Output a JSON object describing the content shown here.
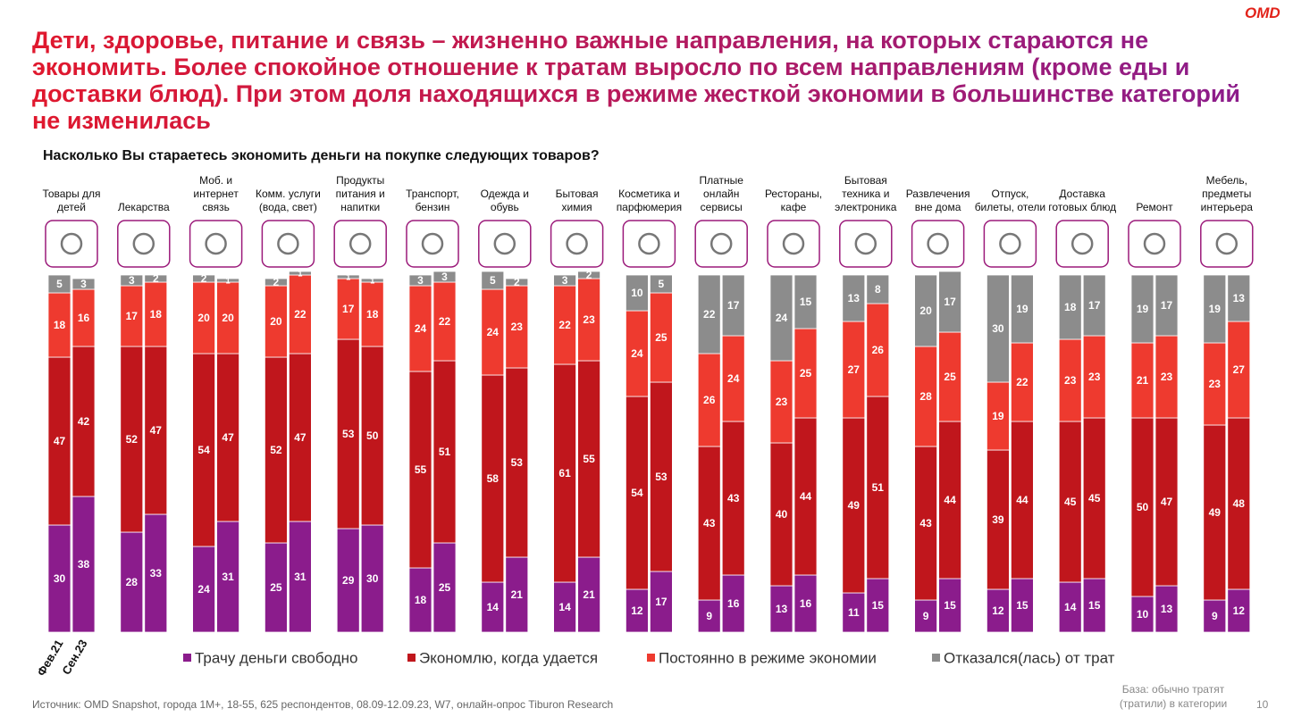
{
  "header": {
    "title": "Дети, здоровье, питание и связь – жизненно важные направления, на которых стараются не экономить. Более спокойное отношение к тратам выросло по всем направлениям (кроме еды и доставки блюд). При этом доля находящихся в режиме жесткой экономии в большинстве категорий не изменилась",
    "logo": "OMD"
  },
  "chart_data": {
    "type": "grouped-stacked-bar",
    "title": "Насколько Вы стараетесь экономить деньги на покупке следующих товаров?",
    "categories": [
      "Товары для детей",
      "Лекарства",
      "Моб. и интернет связь",
      "Комм. услуги (вода, свет)",
      "Продукты питания и напитки",
      "Транспорт, бензин",
      "Одежда и обувь",
      "Бытовая химия",
      "Косметика и парфюмерия",
      "Платные онлайн сервисы",
      "Рестораны, кафе",
      "Бытовая техника и электроника",
      "Развлечения вне дома",
      "Отпуск, билеты, отели",
      "Доставка готовых блюд",
      "Ремонт",
      "Мебель, предметы интерьера"
    ],
    "periods": [
      "Фев.21",
      "Сен.23"
    ],
    "ylim": [
      0,
      100
    ],
    "series": [
      {
        "name": "Трачу деньги свободно",
        "color": "#8b1c8c",
        "values": [
          [
            30,
            38
          ],
          [
            28,
            33
          ],
          [
            24,
            31
          ],
          [
            25,
            31
          ],
          [
            29,
            30
          ],
          [
            18,
            25
          ],
          [
            14,
            21
          ],
          [
            14,
            21
          ],
          [
            12,
            17
          ],
          [
            9,
            16
          ],
          [
            13,
            16
          ],
          [
            11,
            15
          ],
          [
            9,
            15
          ],
          [
            12,
            15
          ],
          [
            14,
            15
          ],
          [
            10,
            13
          ],
          [
            9,
            12
          ]
        ]
      },
      {
        "name": "Экономлю, когда удается",
        "color": "#c0161c",
        "values": [
          [
            47,
            42
          ],
          [
            52,
            47
          ],
          [
            54,
            47
          ],
          [
            52,
            47
          ],
          [
            53,
            50
          ],
          [
            55,
            51
          ],
          [
            58,
            53
          ],
          [
            61,
            55
          ],
          [
            54,
            53
          ],
          [
            43,
            43
          ],
          [
            40,
            44
          ],
          [
            49,
            51
          ],
          [
            43,
            44
          ],
          [
            39,
            44
          ],
          [
            45,
            45
          ],
          [
            50,
            47
          ],
          [
            49,
            48
          ]
        ]
      },
      {
        "name": "Постоянно в режиме экономии",
        "color": "#ee3a2f",
        "values": [
          [
            18,
            16
          ],
          [
            17,
            18
          ],
          [
            20,
            20
          ],
          [
            20,
            22
          ],
          [
            17,
            18
          ],
          [
            24,
            22
          ],
          [
            24,
            23
          ],
          [
            22,
            23
          ],
          [
            24,
            25
          ],
          [
            26,
            24
          ],
          [
            23,
            25
          ],
          [
            27,
            26
          ],
          [
            28,
            25
          ],
          [
            19,
            22
          ],
          [
            23,
            23
          ],
          [
            21,
            23
          ],
          [
            23,
            27
          ]
        ]
      },
      {
        "name": "Отказался(лась) от трат",
        "color": "#8c8c8c",
        "values": [
          [
            5,
            3
          ],
          [
            3,
            2
          ],
          [
            2,
            1
          ],
          [
            2,
            1
          ],
          [
            1,
            1
          ],
          [
            3,
            3
          ],
          [
            5,
            2
          ],
          [
            3,
            2
          ],
          [
            10,
            5
          ],
          [
            22,
            17
          ],
          [
            24,
            15
          ],
          [
            13,
            8
          ],
          [
            20,
            17
          ],
          [
            30,
            19
          ],
          [
            18,
            17
          ],
          [
            19,
            17
          ],
          [
            19,
            13
          ]
        ]
      }
    ]
  },
  "footer": {
    "source": "Источник: OMD Snapshot, города 1М+, 18-55, 625 респондентов, 08.09-12.09.23, W7, онлайн-опрос Tiburon Research",
    "base": "База: обычно тратят (тратили) в категории",
    "page": "10"
  }
}
